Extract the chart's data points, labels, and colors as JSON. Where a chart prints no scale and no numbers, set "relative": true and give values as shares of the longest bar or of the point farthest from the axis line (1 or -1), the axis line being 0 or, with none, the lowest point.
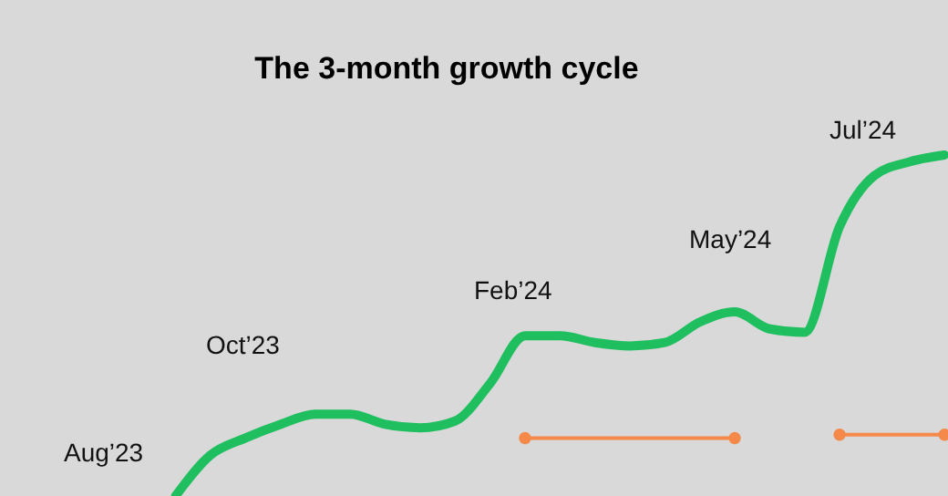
{
  "chart_data": {
    "type": "line",
    "title": "The 3-month growth cycle",
    "relative": true,
    "categories": [
      null,
      null,
      null,
      null,
      null,
      null,
      null,
      null,
      null,
      null,
      null,
      null,
      null,
      null,
      null,
      null,
      null,
      null,
      null,
      null,
      null,
      null,
      null
    ],
    "annotations": [
      "Aug’23",
      "Oct’23",
      "Feb’24",
      "May’24",
      "Jul’24"
    ],
    "series": [
      {
        "color": "#1fbf5f",
        "marker": "none",
        "values": [
          0,
          0.12,
          0.17,
          0.21,
          0.24,
          0.24,
          0.21,
          0.2,
          0.22,
          0.33,
          0.47,
          0.47,
          0.45,
          0.44,
          0.45,
          0.51,
          0.54,
          0.49,
          0.48,
          0.79,
          0.94,
          0.98,
          1
        ]
      },
      {
        "color": "#f4894a",
        "marker": "circle",
        "values": [
          null,
          null,
          null,
          null,
          null,
          null,
          null,
          null,
          null,
          null,
          0.17,
          null,
          null,
          null,
          null,
          null,
          0.17,
          null,
          null,
          null,
          null,
          null,
          null
        ]
      },
      {
        "color": "#f4894a",
        "marker": "circle",
        "values": [
          null,
          null,
          null,
          null,
          null,
          null,
          null,
          null,
          null,
          null,
          null,
          null,
          null,
          null,
          null,
          null,
          null,
          null,
          null,
          0.18,
          null,
          null,
          0.18
        ]
      }
    ]
  }
}
